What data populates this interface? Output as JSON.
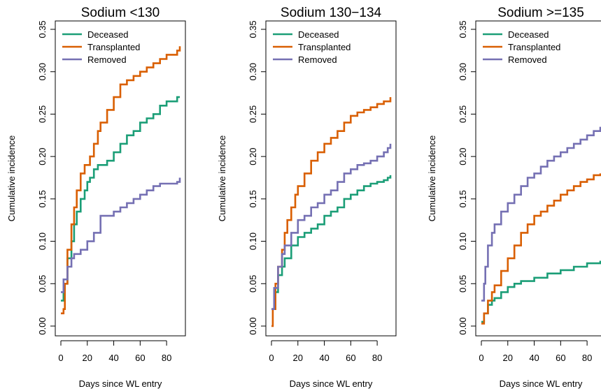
{
  "chart_data": [
    {
      "type": "line",
      "title": "Sodium <130",
      "xlabel": "Days since WL entry",
      "ylabel": "Cumulative incidence",
      "xlim": [
        0,
        90
      ],
      "ylim": [
        0,
        0.35
      ],
      "xticks": [
        "0",
        "20",
        "40",
        "60",
        "80"
      ],
      "yticks": [
        "0.00",
        "0.05",
        "0.10",
        "0.15",
        "0.20",
        "0.25",
        "0.30",
        "0.35"
      ],
      "legend": "top-left",
      "series": [
        {
          "name": "Deceased",
          "color": "#1b9e77",
          "x": [
            0,
            2,
            5,
            8,
            10,
            12,
            15,
            18,
            20,
            22,
            25,
            28,
            30,
            35,
            40,
            45,
            50,
            55,
            60,
            65,
            70,
            75,
            80,
            85,
            88,
            90
          ],
          "y": [
            0.03,
            0.05,
            0.08,
            0.1,
            0.12,
            0.135,
            0.15,
            0.16,
            0.17,
            0.175,
            0.185,
            0.19,
            0.19,
            0.195,
            0.205,
            0.215,
            0.225,
            0.23,
            0.24,
            0.245,
            0.25,
            0.26,
            0.265,
            0.265,
            0.27,
            0.27
          ]
        },
        {
          "name": "Transplanted",
          "color": "#d95f02",
          "x": [
            0,
            2,
            3,
            5,
            8,
            10,
            12,
            15,
            18,
            20,
            22,
            25,
            28,
            30,
            35,
            40,
            45,
            50,
            55,
            60,
            65,
            70,
            75,
            80,
            85,
            88,
            90
          ],
          "y": [
            0.015,
            0.02,
            0.05,
            0.09,
            0.12,
            0.14,
            0.16,
            0.18,
            0.19,
            0.19,
            0.2,
            0.215,
            0.23,
            0.24,
            0.255,
            0.27,
            0.285,
            0.29,
            0.295,
            0.3,
            0.305,
            0.31,
            0.315,
            0.32,
            0.32,
            0.325,
            0.33
          ]
        },
        {
          "name": "Removed",
          "color": "#7570b3",
          "x": [
            0,
            2,
            5,
            8,
            10,
            15,
            20,
            25,
            30,
            35,
            40,
            45,
            50,
            55,
            60,
            65,
            70,
            75,
            80,
            85,
            88,
            90
          ],
          "y": [
            0.04,
            0.055,
            0.07,
            0.08,
            0.085,
            0.09,
            0.1,
            0.11,
            0.13,
            0.13,
            0.135,
            0.14,
            0.145,
            0.15,
            0.155,
            0.16,
            0.165,
            0.168,
            0.168,
            0.168,
            0.17,
            0.175
          ]
        }
      ]
    },
    {
      "type": "line",
      "title": "Sodium 130−134",
      "xlabel": "Days since WL entry",
      "ylabel": "Cumulative incidence",
      "xlim": [
        0,
        90
      ],
      "ylim": [
        0,
        0.35
      ],
      "xticks": [
        "0",
        "20",
        "40",
        "60",
        "80"
      ],
      "yticks": [
        "0.00",
        "0.05",
        "0.10",
        "0.15",
        "0.20",
        "0.25",
        "0.30",
        "0.35"
      ],
      "legend": "top-left",
      "series": [
        {
          "name": "Deceased",
          "color": "#1b9e77",
          "x": [
            0,
            2,
            5,
            8,
            10,
            15,
            20,
            25,
            30,
            35,
            40,
            45,
            50,
            55,
            60,
            65,
            70,
            75,
            80,
            85,
            88,
            90
          ],
          "y": [
            0.02,
            0.04,
            0.06,
            0.07,
            0.08,
            0.095,
            0.105,
            0.11,
            0.115,
            0.12,
            0.13,
            0.135,
            0.14,
            0.15,
            0.155,
            0.16,
            0.165,
            0.168,
            0.17,
            0.172,
            0.175,
            0.178
          ]
        },
        {
          "name": "Transplanted",
          "color": "#d95f02",
          "x": [
            0,
            1,
            3,
            5,
            8,
            10,
            12,
            15,
            18,
            20,
            25,
            30,
            35,
            40,
            45,
            50,
            55,
            60,
            65,
            70,
            75,
            80,
            85,
            90
          ],
          "y": [
            0.0,
            0.02,
            0.05,
            0.07,
            0.09,
            0.11,
            0.125,
            0.14,
            0.155,
            0.165,
            0.18,
            0.195,
            0.205,
            0.215,
            0.222,
            0.23,
            0.24,
            0.248,
            0.252,
            0.255,
            0.258,
            0.262,
            0.265,
            0.27
          ]
        },
        {
          "name": "Removed",
          "color": "#7570b3",
          "x": [
            0,
            2,
            5,
            8,
            10,
            15,
            20,
            25,
            30,
            35,
            40,
            45,
            50,
            55,
            60,
            65,
            70,
            75,
            80,
            85,
            88,
            90
          ],
          "y": [
            0.02,
            0.045,
            0.07,
            0.085,
            0.095,
            0.11,
            0.125,
            0.13,
            0.14,
            0.145,
            0.155,
            0.16,
            0.17,
            0.18,
            0.185,
            0.19,
            0.192,
            0.195,
            0.2,
            0.205,
            0.21,
            0.215
          ]
        }
      ]
    },
    {
      "type": "line",
      "title": "Sodium >=135",
      "xlabel": "Days since WL entry",
      "ylabel": "Cumulative incidence",
      "xlim": [
        0,
        90
      ],
      "ylim": [
        0,
        0.35
      ],
      "xticks": [
        "0",
        "20",
        "40",
        "60",
        "80"
      ],
      "yticks": [
        "0.00",
        "0.05",
        "0.10",
        "0.15",
        "0.20",
        "0.25",
        "0.30",
        "0.35"
      ],
      "legend": "top-left",
      "series": [
        {
          "name": "Deceased",
          "color": "#1b9e77",
          "x": [
            0,
            2,
            5,
            8,
            10,
            15,
            20,
            25,
            30,
            40,
            50,
            60,
            70,
            80,
            90
          ],
          "y": [
            0.005,
            0.015,
            0.025,
            0.03,
            0.033,
            0.04,
            0.046,
            0.05,
            0.053,
            0.057,
            0.062,
            0.066,
            0.07,
            0.074,
            0.077
          ]
        },
        {
          "name": "Transplanted",
          "color": "#d95f02",
          "x": [
            0,
            2,
            5,
            8,
            10,
            15,
            20,
            25,
            30,
            35,
            40,
            45,
            50,
            55,
            60,
            65,
            70,
            75,
            80,
            85,
            90
          ],
          "y": [
            0.003,
            0.015,
            0.03,
            0.04,
            0.048,
            0.065,
            0.08,
            0.095,
            0.11,
            0.12,
            0.13,
            0.135,
            0.142,
            0.148,
            0.155,
            0.16,
            0.165,
            0.17,
            0.173,
            0.178,
            0.18
          ]
        },
        {
          "name": "Removed",
          "color": "#7570b3",
          "x": [
            0,
            2,
            3,
            5,
            8,
            10,
            15,
            20,
            25,
            30,
            35,
            40,
            45,
            50,
            55,
            60,
            65,
            70,
            75,
            80,
            85,
            90
          ],
          "y": [
            0.03,
            0.05,
            0.07,
            0.095,
            0.11,
            0.12,
            0.135,
            0.145,
            0.155,
            0.165,
            0.175,
            0.18,
            0.188,
            0.195,
            0.2,
            0.205,
            0.21,
            0.215,
            0.22,
            0.225,
            0.23,
            0.235
          ]
        }
      ]
    }
  ]
}
